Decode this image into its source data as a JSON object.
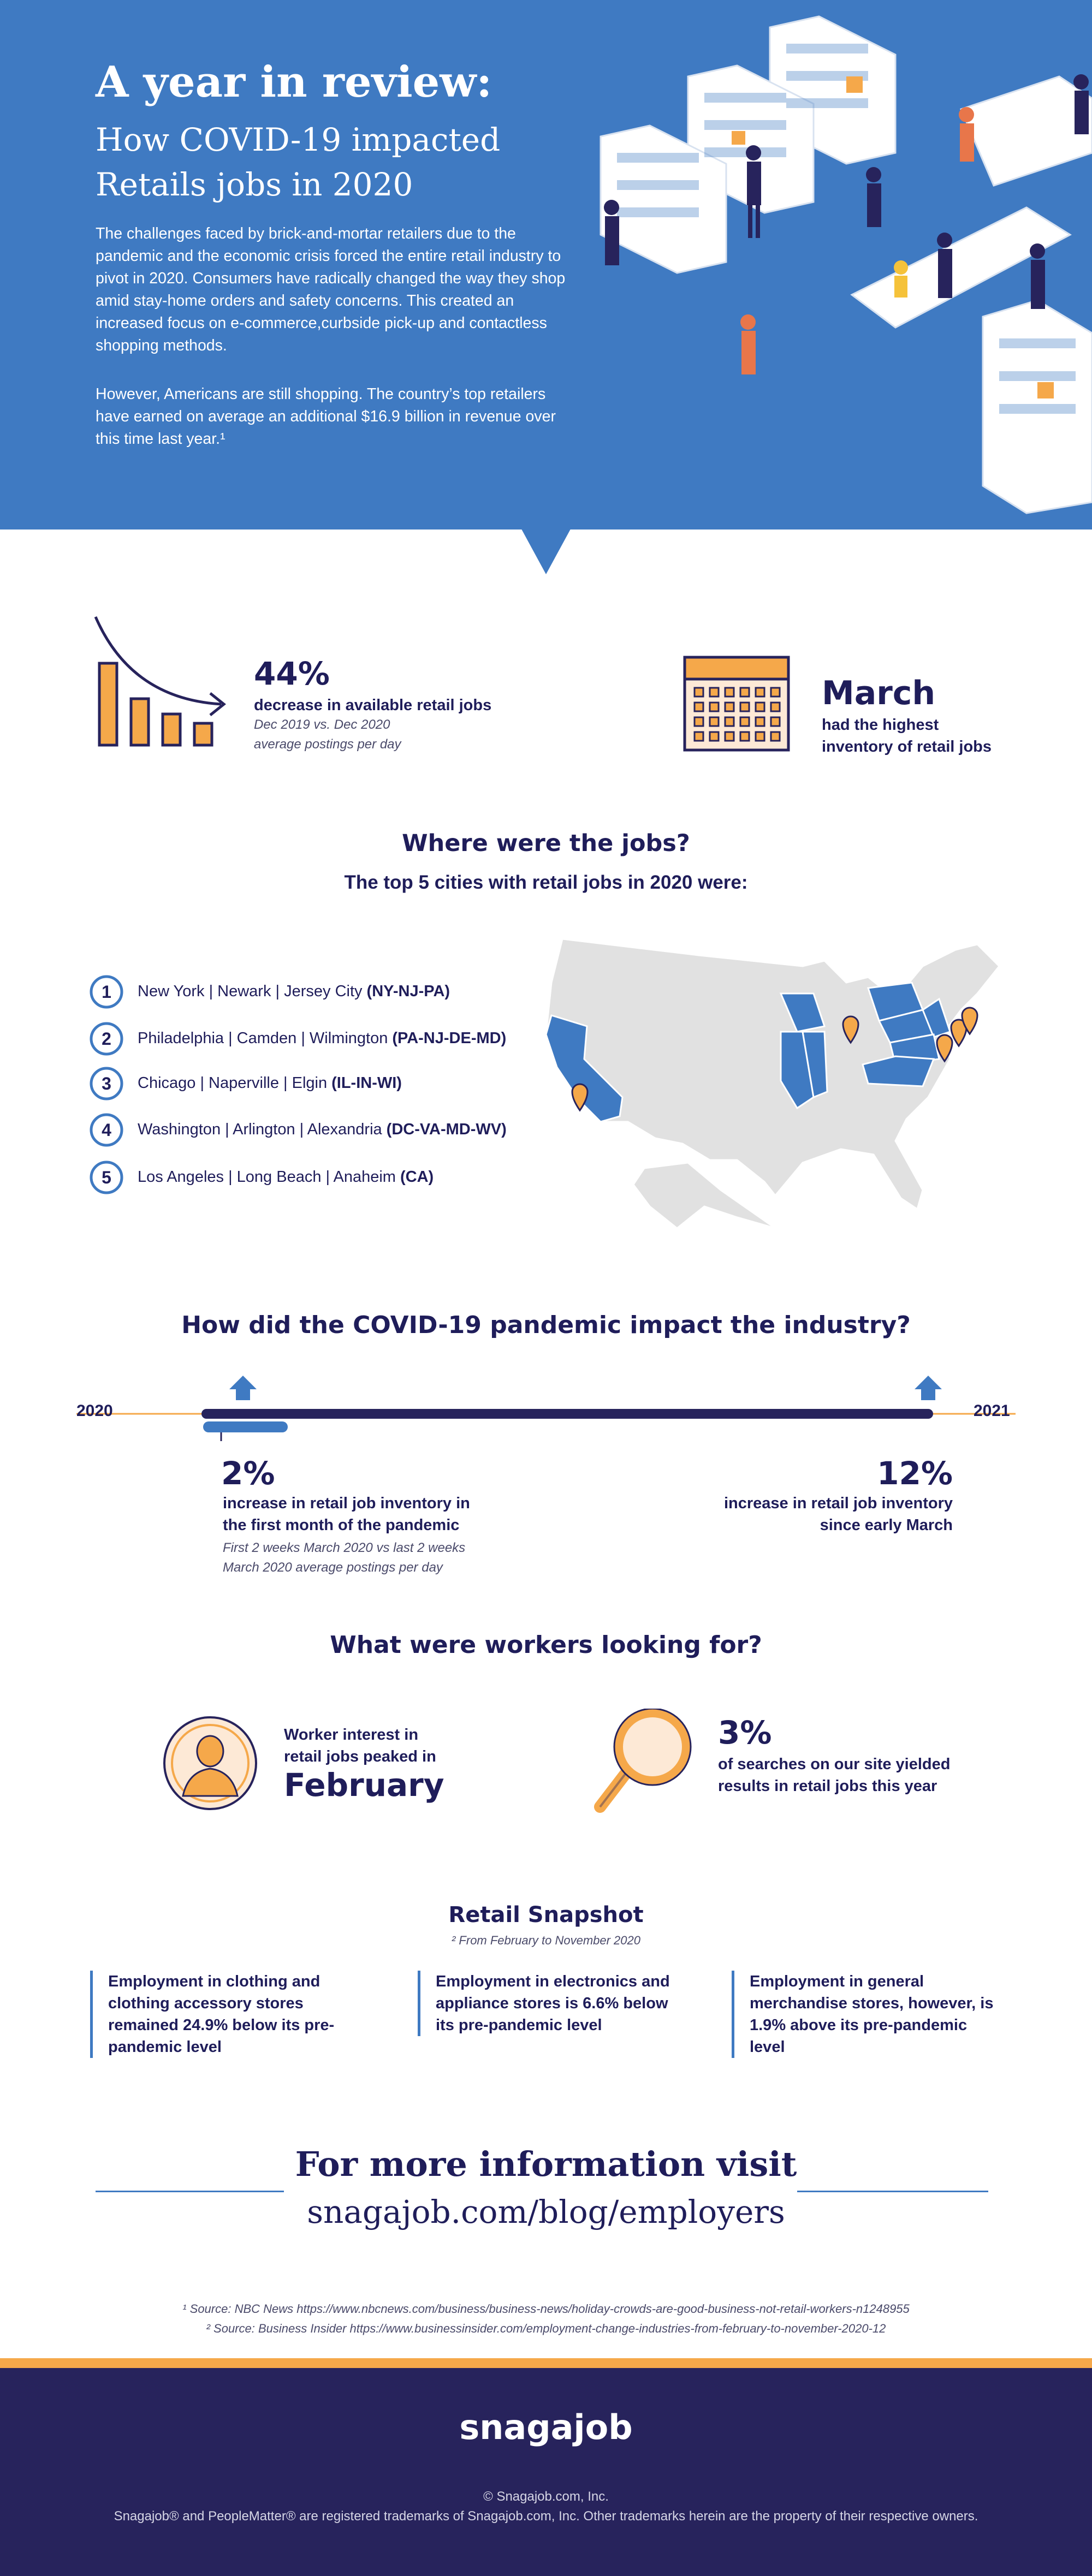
{
  "header": {
    "title": "A year in review:",
    "subtitle": "How COVID-19 impacted Retails jobs in 2020",
    "paragraphs": [
      "The challenges faced by brick-and-mortar retailers due to the pandemic and the economic crisis forced the entire retail industry to pivot in 2020. Consumers have radically changed the way they shop amid stay-home orders and safety concerns. This created an increased focus on e-commerce,curbside pick-up and contactless shopping methods.",
      "However, Americans are still shopping. The country’s top retailers have earned on average an additional $16.9 billion in revenue over this time last year.¹"
    ]
  },
  "stats": [
    {
      "value": "44%",
      "label": "decrease in available retail jobs",
      "note": "Dec 2019 vs. Dec 2020 average postings per day"
    },
    {
      "value": "March",
      "label": "had the highest inventory of retail jobs"
    }
  ],
  "cities": {
    "title": "Where were the jobs?",
    "subtitle": "The top 5 cities with retail jobs in 2020 were:",
    "items": [
      {
        "rank": "1",
        "name": "New York | Newark | Jersey City",
        "code": "(NY-NJ-PA)"
      },
      {
        "rank": "2",
        "name": "Philadelphia | Camden | Wilmington",
        "code": "(PA-NJ-DE-MD)"
      },
      {
        "rank": "3",
        "name": "Chicago | Naperville | Elgin",
        "code": "(IL-IN-WI)"
      },
      {
        "rank": "4",
        "name": "Washington | Arlington | Alexandria",
        "code": "(DC-VA-MD-WV)"
      },
      {
        "rank": "5",
        "name": "Los Angeles | Long Beach | Anaheim",
        "code": "(CA)"
      }
    ]
  },
  "timeline": {
    "title": "How did the COVID-19 pandemic impact the industry?",
    "start": "2020",
    "end": "2021",
    "left": {
      "value": "2%",
      "label": "increase in retail job inventory in the first month of the pandemic",
      "note": "First 2 weeks March 2020 vs last 2 weeks March 2020 average postings per day"
    },
    "right": {
      "value": "12%",
      "label": "increase in retail job inventory since early March"
    }
  },
  "workers": {
    "title": "What were workers looking for?",
    "left": {
      "label": "Worker interest in retail jobs peaked in",
      "value": "February"
    },
    "right": {
      "value": "3%",
      "label": "of searches on our site yielded results in retail jobs this year"
    }
  },
  "snapshot": {
    "title": "Retail Snapshot",
    "note": "² From February to November 2020",
    "items": [
      "Employment in clothing and clothing accessory stores remained 24.9% below its pre-pandemic level",
      "Employment in electronics and appliance stores is 6.6% below its pre-pandemic level",
      "Employment in general merchandise stores, however, is 1.9% above its pre-pandemic level"
    ]
  },
  "cta": {
    "title": "For more information visit",
    "url": "snagajob.com/blog/employers"
  },
  "sources": [
    "¹ Source: NBC News https://www.nbcnews.com/business/business-news/holiday-crowds-are-good-business-not-retail-workers-n1248955",
    "² Source: Business Insider https://www.businessinsider.com/employment-change-industries-from-february-to-november-2020-12"
  ],
  "footer": {
    "logo": "snagajob",
    "copyright": "© Snagajob.com, Inc.",
    "trademark": "Snagajob® and PeopleMatter® are registered trademarks of Snagajob.com, Inc. Other trademarks herein are the property of their respective owners."
  }
}
